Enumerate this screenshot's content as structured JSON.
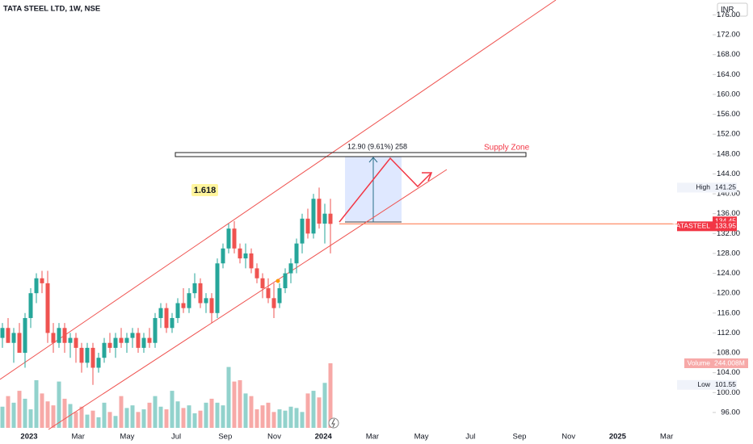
{
  "chart_data": {
    "type": "candlestick",
    "title": "TATA STEEL LTD, 1W, NSE",
    "currency": "INR",
    "open": [
      111,
      113,
      110,
      112,
      108,
      115,
      120,
      123,
      122,
      112,
      110,
      113,
      110,
      111,
      109,
      106,
      109,
      105,
      107,
      110,
      109,
      111,
      110,
      111,
      112,
      109,
      111,
      110,
      115,
      117,
      113,
      115,
      118,
      117,
      120,
      122,
      118,
      119,
      116,
      126,
      129,
      133,
      129,
      127,
      128,
      125,
      123,
      121,
      119,
      118,
      121,
      124,
      126,
      130,
      135,
      132,
      139,
      134,
      136
    ],
    "high": [
      114,
      115,
      113,
      114,
      116,
      121,
      124,
      124.5,
      124.5,
      114,
      114,
      114,
      112,
      112,
      110,
      110,
      110,
      108,
      111,
      112,
      112,
      113,
      112,
      113,
      113,
      112,
      113,
      116,
      118,
      118,
      116,
      119,
      121,
      121,
      124,
      123,
      120,
      120,
      127,
      130,
      134,
      134.5,
      130,
      130,
      129,
      126,
      124,
      123,
      122,
      122,
      125,
      127,
      131,
      136,
      137,
      140,
      141.25,
      138,
      139
    ],
    "low": [
      109,
      110,
      106,
      108,
      105,
      113,
      118,
      120,
      110,
      108,
      109,
      108,
      107,
      106,
      104,
      105,
      101.55,
      104,
      106,
      108,
      107,
      109,
      108,
      109,
      108,
      108,
      109,
      109,
      113,
      112,
      112,
      114,
      116,
      116,
      119,
      117,
      116,
      114,
      115,
      125,
      128,
      128,
      126,
      125,
      124,
      122,
      119,
      118,
      115,
      117,
      120,
      122,
      124,
      128,
      131,
      131,
      133,
      130,
      128
    ],
    "close": [
      113,
      110,
      112,
      108,
      115,
      120,
      123,
      122,
      112,
      110,
      113,
      110,
      111,
      109,
      106,
      109,
      105,
      107,
      110,
      109,
      111,
      110,
      111,
      112,
      109,
      111,
      110,
      115,
      117,
      113,
      115,
      118,
      117,
      120,
      122,
      118,
      119,
      116,
      126,
      129,
      133,
      129,
      127,
      128,
      125,
      123,
      121,
      119,
      117,
      121,
      124,
      126,
      130,
      135,
      132,
      139,
      134,
      136,
      133.95
    ],
    "volume_name": "Volume",
    "volume": [
      80,
      120,
      95,
      140,
      110,
      70,
      180,
      130,
      100,
      85,
      175,
      110,
      90,
      60,
      80,
      50,
      65,
      40,
      95,
      60,
      45,
      120,
      75,
      85,
      60,
      70,
      95,
      120,
      80,
      70,
      140,
      100,
      75,
      85,
      55,
      65,
      95,
      110,
      95,
      85,
      230,
      175,
      180,
      130,
      120,
      70,
      85,
      95,
      60,
      70,
      65,
      80,
      75,
      60,
      130,
      140,
      115,
      170,
      244.008
    ],
    "volume_last_label": "244.008M",
    "colors": {
      "up": "#26a69a",
      "down": "#ef5350"
    },
    "ylim": [
      92.9,
      179
    ],
    "yticks": [
      {
        "value": 96,
        "label": "96.00"
      },
      {
        "value": 100,
        "label": "100.00"
      },
      {
        "value": 104,
        "label": "104.00"
      },
      {
        "value": 108,
        "label": "108.00"
      },
      {
        "value": 112,
        "label": "112.00"
      },
      {
        "value": 116,
        "label": "116.00"
      },
      {
        "value": 120,
        "label": "120.00"
      },
      {
        "value": 124,
        "label": "124.00"
      },
      {
        "value": 128,
        "label": "128.00"
      },
      {
        "value": 132,
        "label": "132.00"
      },
      {
        "value": 136,
        "label": "136.00"
      },
      {
        "value": 140,
        "label": "140.00"
      },
      {
        "value": 144,
        "label": "144.00"
      },
      {
        "value": 148,
        "label": "148.00"
      },
      {
        "value": 152,
        "label": "152.00"
      },
      {
        "value": 156,
        "label": "156.00"
      },
      {
        "value": 160,
        "label": "160.00"
      },
      {
        "value": 164,
        "label": "164.00"
      },
      {
        "value": 168,
        "label": "168.00"
      },
      {
        "value": 172,
        "label": "172.00"
      },
      {
        "value": 176,
        "label": "176.00"
      }
    ],
    "xlabels": [
      "2023",
      "Mar",
      "May",
      "Jul",
      "Sep",
      "Nov",
      "2024",
      "Mar",
      "May",
      "Jul",
      "Sep",
      "Nov",
      "2025",
      "Mar"
    ],
    "high_marker": {
      "name": "High",
      "value": 141.25
    },
    "low_marker": {
      "name": "Low",
      "value": 101.55
    },
    "symbol": "TATASTEEL",
    "last_price": 133.95,
    "price_badge": 134.45,
    "fib_label": "1.618",
    "measure_label": "12.90 (9.61%) 258",
    "zone_label": "Supply Zone"
  }
}
